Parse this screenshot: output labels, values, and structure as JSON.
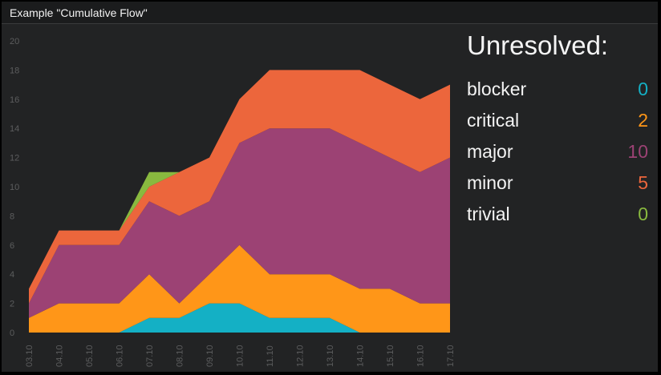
{
  "widget": {
    "title": "Example \"Cumulative Flow\""
  },
  "legend": {
    "title": "Unresolved:",
    "items": [
      {
        "label": "blocker",
        "value": "0",
        "color": "#14b0c5"
      },
      {
        "label": "critical",
        "value": "2",
        "color": "#ff9618"
      },
      {
        "label": "major",
        "value": "10",
        "color": "#9c4274"
      },
      {
        "label": "minor",
        "value": "5",
        "color": "#ec663c"
      },
      {
        "label": "trivial",
        "value": "0",
        "color": "#89b93f"
      }
    ]
  },
  "chart_data": {
    "type": "area",
    "stacked": true,
    "categories": [
      "03.10",
      "04.10",
      "05.10",
      "06.10",
      "07.10",
      "08.10",
      "09.10",
      "10.10",
      "11.10",
      "12.10",
      "13.10",
      "14.10",
      "15.10",
      "16.10",
      "17.10"
    ],
    "yticks": [
      0,
      2,
      4,
      6,
      8,
      10,
      12,
      14,
      16,
      18,
      20
    ],
    "ylim": [
      0,
      20
    ],
    "grid": false,
    "series": [
      {
        "name": "blocker",
        "color": "#14b0c5",
        "values": [
          0,
          0,
          0,
          0,
          1,
          1,
          2,
          2,
          1,
          1,
          1,
          0,
          0,
          0,
          0
        ]
      },
      {
        "name": "critical",
        "color": "#ff9618",
        "values": [
          1,
          2,
          2,
          2,
          3,
          1,
          2,
          4,
          3,
          3,
          3,
          3,
          3,
          2,
          2
        ]
      },
      {
        "name": "major",
        "color": "#9c4274",
        "values": [
          1,
          4,
          4,
          4,
          5,
          6,
          5,
          7,
          10,
          10,
          10,
          10,
          9,
          9,
          10
        ]
      },
      {
        "name": "minor",
        "color": "#ec663c",
        "values": [
          1,
          1,
          1,
          1,
          1,
          3,
          3,
          3,
          4,
          4,
          4,
          5,
          5,
          5,
          5
        ]
      },
      {
        "name": "trivial",
        "color": "#89b93f",
        "values": [
          0,
          0,
          0,
          0,
          1,
          0,
          0,
          0,
          0,
          0,
          0,
          0,
          0,
          0,
          0
        ]
      }
    ]
  }
}
